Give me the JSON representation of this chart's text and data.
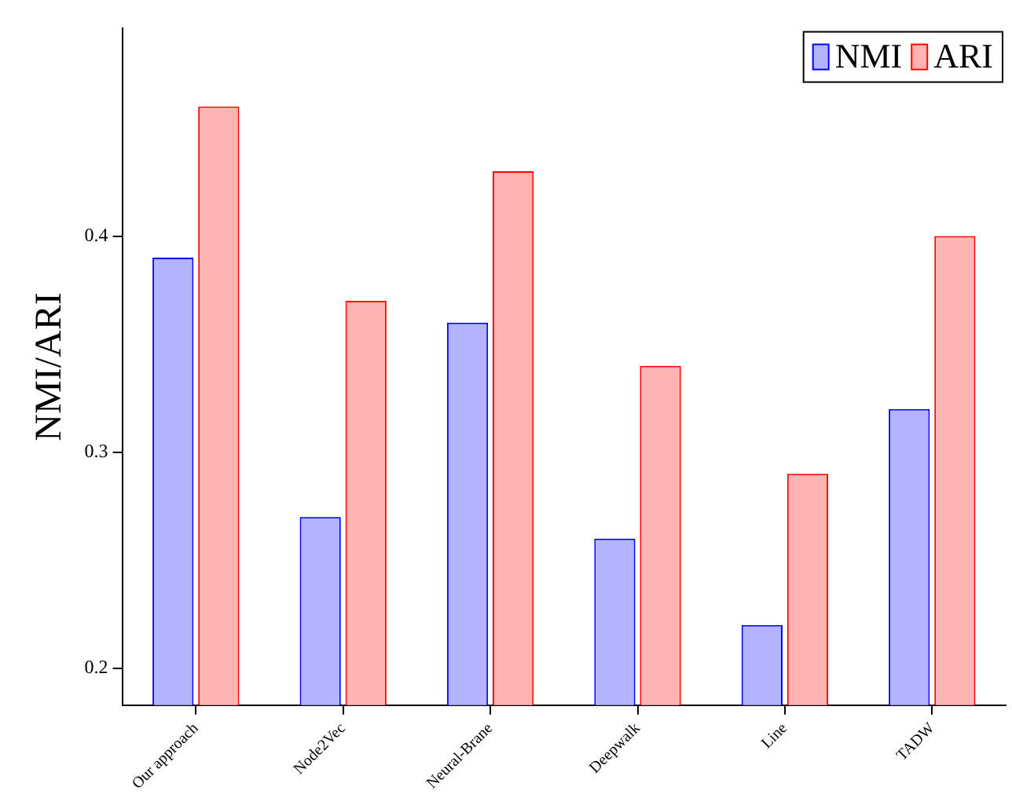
{
  "chart_data": {
    "type": "bar",
    "ylabel": "NMI/ARI",
    "categories": [
      "Our approach",
      "Node2Vec",
      "Neural-Brane",
      "Deepwalk",
      "Line",
      "TADW"
    ],
    "series": [
      {
        "name": "NMI",
        "color": "#b3b3ff",
        "values": [
          0.39,
          0.27,
          0.36,
          0.26,
          0.22,
          0.32
        ]
      },
      {
        "name": "ARI",
        "color": "#ffb3b3",
        "values": [
          0.46,
          0.37,
          0.43,
          0.34,
          0.29,
          0.4
        ]
      }
    ],
    "ylim": [
      0.183,
      0.496
    ],
    "yticks": [
      0.2,
      0.3,
      0.4
    ],
    "grid": false,
    "legend": "top right"
  }
}
